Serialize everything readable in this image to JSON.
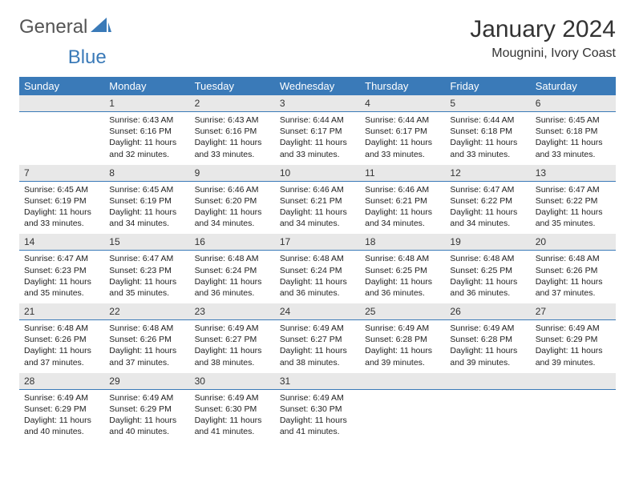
{
  "brand": {
    "part1": "General",
    "part2": "Blue",
    "accent": "#3a7ab8",
    "text_gray": "#555"
  },
  "header": {
    "title": "January 2024",
    "location": "Mougnini, Ivory Coast"
  },
  "dayHeaders": [
    "Sunday",
    "Monday",
    "Tuesday",
    "Wednesday",
    "Thursday",
    "Friday",
    "Saturday"
  ],
  "style": {
    "header_bg": "#3a7ab8",
    "header_fg": "#ffffff",
    "daynum_bg": "#e8e8e8",
    "daynum_border": "#3a7ab8",
    "body_font_size": 10.5,
    "th_font_size": 13,
    "title_font_size": 30,
    "location_font_size": 16
  },
  "weeks": [
    [
      null,
      {
        "n": "1",
        "sunrise": "6:43 AM",
        "sunset": "6:16 PM",
        "daylight": "11 hours and 32 minutes."
      },
      {
        "n": "2",
        "sunrise": "6:43 AM",
        "sunset": "6:16 PM",
        "daylight": "11 hours and 33 minutes."
      },
      {
        "n": "3",
        "sunrise": "6:44 AM",
        "sunset": "6:17 PM",
        "daylight": "11 hours and 33 minutes."
      },
      {
        "n": "4",
        "sunrise": "6:44 AM",
        "sunset": "6:17 PM",
        "daylight": "11 hours and 33 minutes."
      },
      {
        "n": "5",
        "sunrise": "6:44 AM",
        "sunset": "6:18 PM",
        "daylight": "11 hours and 33 minutes."
      },
      {
        "n": "6",
        "sunrise": "6:45 AM",
        "sunset": "6:18 PM",
        "daylight": "11 hours and 33 minutes."
      }
    ],
    [
      {
        "n": "7",
        "sunrise": "6:45 AM",
        "sunset": "6:19 PM",
        "daylight": "11 hours and 33 minutes."
      },
      {
        "n": "8",
        "sunrise": "6:45 AM",
        "sunset": "6:19 PM",
        "daylight": "11 hours and 34 minutes."
      },
      {
        "n": "9",
        "sunrise": "6:46 AM",
        "sunset": "6:20 PM",
        "daylight": "11 hours and 34 minutes."
      },
      {
        "n": "10",
        "sunrise": "6:46 AM",
        "sunset": "6:21 PM",
        "daylight": "11 hours and 34 minutes."
      },
      {
        "n": "11",
        "sunrise": "6:46 AM",
        "sunset": "6:21 PM",
        "daylight": "11 hours and 34 minutes."
      },
      {
        "n": "12",
        "sunrise": "6:47 AM",
        "sunset": "6:22 PM",
        "daylight": "11 hours and 34 minutes."
      },
      {
        "n": "13",
        "sunrise": "6:47 AM",
        "sunset": "6:22 PM",
        "daylight": "11 hours and 35 minutes."
      }
    ],
    [
      {
        "n": "14",
        "sunrise": "6:47 AM",
        "sunset": "6:23 PM",
        "daylight": "11 hours and 35 minutes."
      },
      {
        "n": "15",
        "sunrise": "6:47 AM",
        "sunset": "6:23 PM",
        "daylight": "11 hours and 35 minutes."
      },
      {
        "n": "16",
        "sunrise": "6:48 AM",
        "sunset": "6:24 PM",
        "daylight": "11 hours and 36 minutes."
      },
      {
        "n": "17",
        "sunrise": "6:48 AM",
        "sunset": "6:24 PM",
        "daylight": "11 hours and 36 minutes."
      },
      {
        "n": "18",
        "sunrise": "6:48 AM",
        "sunset": "6:25 PM",
        "daylight": "11 hours and 36 minutes."
      },
      {
        "n": "19",
        "sunrise": "6:48 AM",
        "sunset": "6:25 PM",
        "daylight": "11 hours and 36 minutes."
      },
      {
        "n": "20",
        "sunrise": "6:48 AM",
        "sunset": "6:26 PM",
        "daylight": "11 hours and 37 minutes."
      }
    ],
    [
      {
        "n": "21",
        "sunrise": "6:48 AM",
        "sunset": "6:26 PM",
        "daylight": "11 hours and 37 minutes."
      },
      {
        "n": "22",
        "sunrise": "6:48 AM",
        "sunset": "6:26 PM",
        "daylight": "11 hours and 37 minutes."
      },
      {
        "n": "23",
        "sunrise": "6:49 AM",
        "sunset": "6:27 PM",
        "daylight": "11 hours and 38 minutes."
      },
      {
        "n": "24",
        "sunrise": "6:49 AM",
        "sunset": "6:27 PM",
        "daylight": "11 hours and 38 minutes."
      },
      {
        "n": "25",
        "sunrise": "6:49 AM",
        "sunset": "6:28 PM",
        "daylight": "11 hours and 39 minutes."
      },
      {
        "n": "26",
        "sunrise": "6:49 AM",
        "sunset": "6:28 PM",
        "daylight": "11 hours and 39 minutes."
      },
      {
        "n": "27",
        "sunrise": "6:49 AM",
        "sunset": "6:29 PM",
        "daylight": "11 hours and 39 minutes."
      }
    ],
    [
      {
        "n": "28",
        "sunrise": "6:49 AM",
        "sunset": "6:29 PM",
        "daylight": "11 hours and 40 minutes."
      },
      {
        "n": "29",
        "sunrise": "6:49 AM",
        "sunset": "6:29 PM",
        "daylight": "11 hours and 40 minutes."
      },
      {
        "n": "30",
        "sunrise": "6:49 AM",
        "sunset": "6:30 PM",
        "daylight": "11 hours and 41 minutes."
      },
      {
        "n": "31",
        "sunrise": "6:49 AM",
        "sunset": "6:30 PM",
        "daylight": "11 hours and 41 minutes."
      },
      null,
      null,
      null
    ]
  ]
}
